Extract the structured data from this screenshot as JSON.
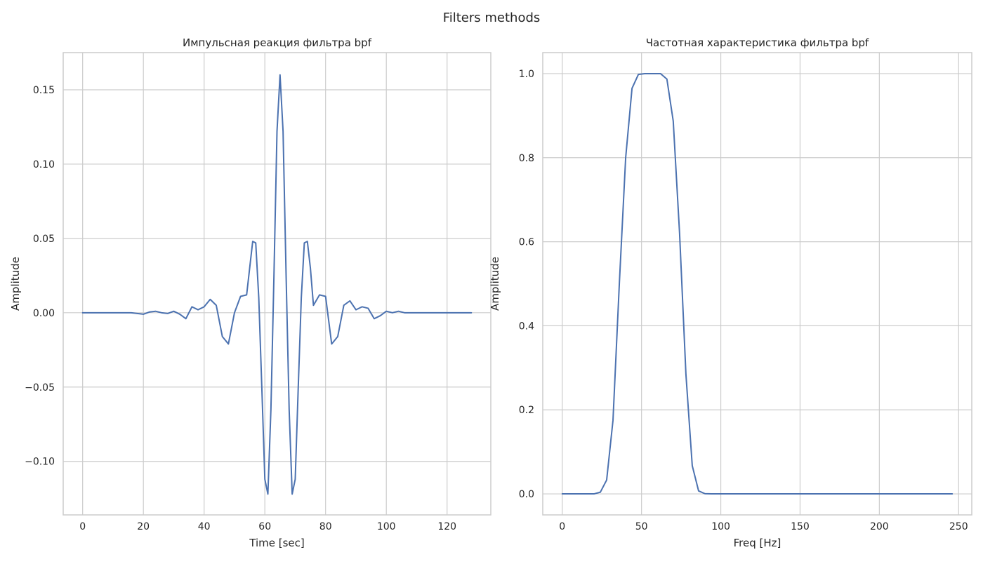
{
  "figure": {
    "suptitle": "Filters methods"
  },
  "colors": {
    "line": "#4c72b0",
    "grid": "#cccccc",
    "spine": "#cccccc",
    "text": "#262626",
    "background": "#ffffff"
  },
  "chart_data": [
    {
      "type": "line",
      "title": "Импульсная реакция фильтра bpf",
      "xlabel": "Time [sec]",
      "ylabel": "Amplitude",
      "xlim": [
        -6.4,
        134.4
      ],
      "ylim": [
        -0.136,
        0.175
      ],
      "xticks": [
        0,
        20,
        40,
        60,
        80,
        100,
        120
      ],
      "xtick_labels": [
        "0",
        "20",
        "40",
        "60",
        "80",
        "100",
        "120"
      ],
      "yticks": [
        -0.1,
        -0.05,
        0,
        0.05,
        0.1,
        0.15
      ],
      "ytick_labels": [
        "−0.10",
        "−0.05",
        "0.00",
        "0.05",
        "0.10",
        "0.15"
      ],
      "grid": true,
      "series": [
        {
          "x": [
            0,
            16,
            18,
            20,
            22,
            24,
            26,
            28,
            30,
            32,
            34,
            36,
            38,
            40,
            42,
            44,
            46,
            48,
            50,
            52,
            54,
            55,
            56,
            57,
            58,
            59,
            60,
            61,
            62,
            63,
            64,
            65,
            66,
            67,
            68,
            69,
            70,
            71,
            72,
            73,
            74,
            75,
            76,
            78,
            80,
            82,
            84,
            86,
            88,
            90,
            92,
            94,
            96,
            98,
            100,
            102,
            104,
            106,
            108,
            110,
            112,
            128
          ],
          "y": [
            0,
            0,
            -0.0005,
            -0.001,
            0.0005,
            0.001,
            0.0,
            -0.0005,
            0.001,
            -0.001,
            -0.004,
            0.004,
            0.002,
            0.004,
            0.009,
            0.005,
            -0.016,
            -0.021,
            0.0,
            0.011,
            0.012,
            0.03,
            0.048,
            0.047,
            0.01,
            -0.05,
            -0.112,
            -0.122,
            -0.065,
            0.025,
            0.122,
            0.16,
            0.122,
            0.025,
            -0.065,
            -0.122,
            -0.112,
            -0.05,
            0.01,
            0.047,
            0.048,
            0.03,
            0.005,
            0.012,
            0.011,
            -0.021,
            -0.016,
            0.005,
            0.008,
            0.002,
            0.004,
            0.003,
            -0.004,
            -0.002,
            0.001,
            0.0,
            0.001,
            0.0,
            0.0,
            0,
            0,
            0
          ]
        }
      ]
    },
    {
      "type": "line",
      "title": "Частотная характеристика фильтра bpf",
      "xlabel": "Freq [Hz]",
      "ylabel": "Amplitude",
      "xlim": [
        -12.3,
        258.3
      ],
      "ylim": [
        -0.05,
        1.05
      ],
      "xticks": [
        0,
        50,
        100,
        150,
        200,
        250
      ],
      "xtick_labels": [
        "0",
        "50",
        "100",
        "150",
        "200",
        "250"
      ],
      "yticks": [
        0,
        0.2,
        0.4,
        0.6,
        0.8,
        1.0
      ],
      "ytick_labels": [
        "0.0",
        "0.2",
        "0.4",
        "0.6",
        "0.8",
        "1.0"
      ],
      "grid": true,
      "series": [
        {
          "x": [
            0,
            4,
            8,
            12,
            16,
            20,
            24,
            28,
            32,
            36,
            40,
            44,
            48,
            52,
            56,
            60,
            62,
            66,
            70,
            74,
            78,
            82,
            86,
            90,
            94,
            98,
            102,
            246
          ],
          "y": [
            0,
            0,
            0,
            0,
            0,
            0,
            0.004,
            0.033,
            0.175,
            0.5,
            0.8,
            0.965,
            0.998,
            1.0,
            1.0,
            1.0,
            1.0,
            0.987,
            0.887,
            0.62,
            0.285,
            0.067,
            0.007,
            0.0005,
            0,
            0,
            0,
            0
          ]
        }
      ]
    }
  ]
}
